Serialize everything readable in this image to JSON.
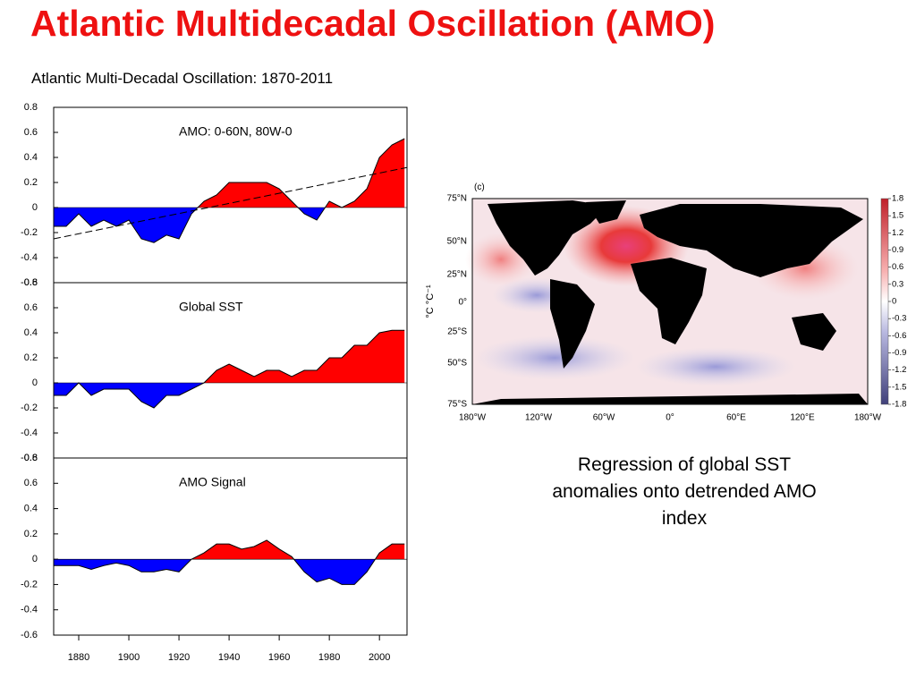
{
  "title": "Atlantic Multidecadal Oscillation (AMO)",
  "figure_title": "Atlantic Multi-Decadal Oscillation: 1870-2011",
  "chart_data": [
    {
      "type": "area",
      "title": "AMO: 0-60N, 80W-0",
      "x": [
        1870,
        1875,
        1880,
        1885,
        1890,
        1895,
        1900,
        1905,
        1910,
        1915,
        1920,
        1925,
        1930,
        1935,
        1940,
        1945,
        1950,
        1955,
        1960,
        1965,
        1970,
        1975,
        1980,
        1985,
        1990,
        1995,
        2000,
        2005,
        2010
      ],
      "values": [
        -0.15,
        -0.15,
        -0.05,
        -0.15,
        -0.1,
        -0.15,
        -0.1,
        -0.25,
        -0.28,
        -0.22,
        -0.25,
        -0.05,
        0.05,
        0.1,
        0.2,
        0.2,
        0.2,
        0.2,
        0.15,
        0.05,
        -0.05,
        -0.1,
        0.05,
        0.0,
        0.05,
        0.15,
        0.4,
        0.5,
        0.55
      ],
      "trend": {
        "x": [
          1870,
          2011
        ],
        "values": [
          -0.25,
          0.32
        ]
      },
      "positive_color": "#ff0000",
      "negative_color": "#0000ff",
      "xlim": [
        1870,
        2011
      ],
      "ylim": [
        -0.6,
        0.8
      ],
      "yticks": [
        0.8,
        0.6,
        0.4,
        0.2,
        0,
        -0.2,
        -0.4,
        -0.6
      ]
    },
    {
      "type": "area",
      "title": "Global SST",
      "x": [
        1870,
        1875,
        1880,
        1885,
        1890,
        1895,
        1900,
        1905,
        1910,
        1915,
        1920,
        1925,
        1930,
        1935,
        1940,
        1945,
        1950,
        1955,
        1960,
        1965,
        1970,
        1975,
        1980,
        1985,
        1990,
        1995,
        2000,
        2005,
        2010
      ],
      "values": [
        -0.1,
        -0.1,
        0.0,
        -0.1,
        -0.05,
        -0.05,
        -0.05,
        -0.15,
        -0.2,
        -0.1,
        -0.1,
        -0.05,
        0.0,
        0.1,
        0.15,
        0.1,
        0.05,
        0.1,
        0.1,
        0.05,
        0.1,
        0.1,
        0.2,
        0.2,
        0.3,
        0.3,
        0.4,
        0.42,
        0.42
      ],
      "positive_color": "#ff0000",
      "negative_color": "#0000ff",
      "xlim": [
        1870,
        2011
      ],
      "ylim": [
        -0.6,
        0.8
      ],
      "yticks": [
        0.8,
        0.6,
        0.4,
        0.2,
        0,
        -0.2,
        -0.4,
        -0.6
      ]
    },
    {
      "type": "area",
      "title": "AMO Signal",
      "x": [
        1870,
        1875,
        1880,
        1885,
        1890,
        1895,
        1900,
        1905,
        1910,
        1915,
        1920,
        1925,
        1930,
        1935,
        1940,
        1945,
        1950,
        1955,
        1960,
        1965,
        1970,
        1975,
        1980,
        1985,
        1990,
        1995,
        2000,
        2005,
        2010
      ],
      "values": [
        -0.05,
        -0.05,
        -0.05,
        -0.08,
        -0.05,
        -0.03,
        -0.05,
        -0.1,
        -0.1,
        -0.08,
        -0.1,
        0,
        0.05,
        0.12,
        0.12,
        0.08,
        0.1,
        0.15,
        0.08,
        0.02,
        -0.1,
        -0.18,
        -0.15,
        -0.2,
        -0.2,
        -0.1,
        0.05,
        0.12,
        0.12
      ],
      "positive_color": "#ff0000",
      "negative_color": "#0000ff",
      "xlim": [
        1870,
        2011
      ],
      "ylim": [
        -0.6,
        0.8
      ],
      "yticks": [
        0.8,
        0.6,
        0.4,
        0.2,
        0,
        -0.2,
        -0.4,
        -0.6
      ],
      "xticks": [
        1880,
        1900,
        1920,
        1940,
        1960,
        1980,
        2000
      ]
    }
  ],
  "map": {
    "panel_label": "(c)",
    "unit_label": "°C °C⁻¹",
    "lat_labels": [
      "75°N",
      "50°N",
      "25°N",
      "0°",
      "25°S",
      "50°S",
      "75°S"
    ],
    "lon_labels": [
      "180°W",
      "120°W",
      "60°W",
      "0°",
      "60°E",
      "120°E",
      "180°W"
    ],
    "colorbar_ticks": [
      1.8,
      1.5,
      1.2,
      0.9,
      0.6,
      0.3,
      0,
      -0.3,
      -0.6,
      -0.9,
      -1.2,
      -1.5,
      -1.8
    ]
  },
  "caption": [
    "Regression of global SST",
    "anomalies onto detrended AMO",
    "index"
  ]
}
